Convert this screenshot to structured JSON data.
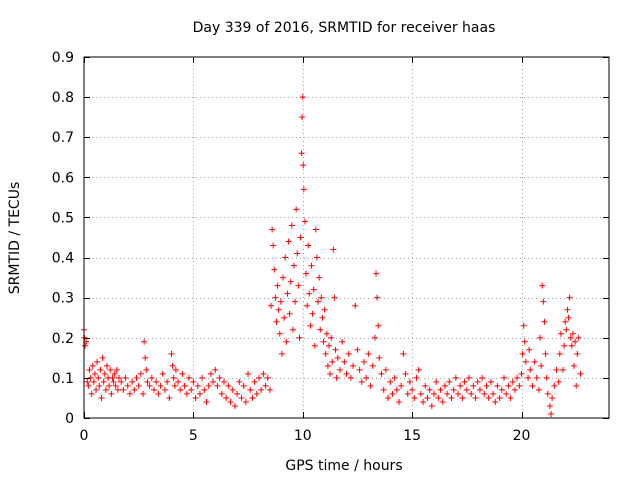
{
  "chart_data": {
    "type": "scatter",
    "title": "Day 339 of 2016, SRMTID for receiver haas",
    "xlabel": "GPS time / hours",
    "ylabel": "SRMTID / TECUs",
    "xlim": [
      0,
      24
    ],
    "ylim": [
      0,
      0.9
    ],
    "xticks": [
      0,
      5,
      10,
      15,
      20
    ],
    "xtick_labels": [
      "0",
      "5",
      "10",
      "15",
      "20"
    ],
    "yticks": [
      0,
      0.1,
      0.2,
      0.3,
      0.4,
      0.5,
      0.6,
      0.7,
      0.8,
      0.9
    ],
    "ytick_labels": [
      "0",
      "0.1",
      "0.2",
      "0.3",
      "0.4",
      "0.5",
      "0.6",
      "0.7",
      "0.8",
      "0.9"
    ],
    "grid": true,
    "marker": "+",
    "marker_color": "#ff0000",
    "series": [
      {
        "name": "SRMTID",
        "points": [
          [
            0.0,
            0.22
          ],
          [
            0.02,
            0.2
          ],
          [
            0.05,
            0.18
          ],
          [
            0.1,
            0.19
          ],
          [
            0.15,
            0.09
          ],
          [
            0.2,
            0.08
          ],
          [
            0.25,
            0.12
          ],
          [
            0.3,
            0.1
          ],
          [
            0.35,
            0.06
          ],
          [
            0.4,
            0.13
          ],
          [
            0.45,
            0.09
          ],
          [
            0.5,
            0.11
          ],
          [
            0.55,
            0.07
          ],
          [
            0.6,
            0.14
          ],
          [
            0.65,
            0.1
          ],
          [
            0.7,
            0.08
          ],
          [
            0.75,
            0.12
          ],
          [
            0.8,
            0.05
          ],
          [
            0.85,
            0.15
          ],
          [
            0.9,
            0.09
          ],
          [
            0.95,
            0.11
          ],
          [
            1.0,
            0.07
          ],
          [
            1.05,
            0.13
          ],
          [
            1.1,
            0.1
          ],
          [
            1.15,
            0.08
          ],
          [
            1.2,
            0.12
          ],
          [
            1.25,
            0.06
          ],
          [
            1.3,
            0.1
          ],
          [
            1.35,
            0.09
          ],
          [
            1.4,
            0.11
          ],
          [
            1.45,
            0.08
          ],
          [
            1.5,
            0.12
          ],
          [
            1.55,
            0.07
          ],
          [
            1.6,
            0.1
          ],
          [
            1.7,
            0.09
          ],
          [
            1.8,
            0.07
          ],
          [
            1.9,
            0.1
          ],
          [
            2.0,
            0.08
          ],
          [
            2.1,
            0.06
          ],
          [
            2.2,
            0.09
          ],
          [
            2.3,
            0.07
          ],
          [
            2.4,
            0.1
          ],
          [
            2.5,
            0.08
          ],
          [
            2.6,
            0.11
          ],
          [
            2.7,
            0.06
          ],
          [
            2.75,
            0.19
          ],
          [
            2.8,
            0.15
          ],
          [
            2.85,
            0.12
          ],
          [
            2.9,
            0.09
          ],
          [
            3.0,
            0.08
          ],
          [
            3.1,
            0.1
          ],
          [
            3.2,
            0.07
          ],
          [
            3.3,
            0.09
          ],
          [
            3.4,
            0.06
          ],
          [
            3.5,
            0.08
          ],
          [
            3.6,
            0.11
          ],
          [
            3.7,
            0.07
          ],
          [
            3.8,
            0.09
          ],
          [
            3.9,
            0.05
          ],
          [
            4.0,
            0.16
          ],
          [
            4.05,
            0.13
          ],
          [
            4.1,
            0.1
          ],
          [
            4.15,
            0.08
          ],
          [
            4.2,
            0.12
          ],
          [
            4.3,
            0.09
          ],
          [
            4.4,
            0.07
          ],
          [
            4.5,
            0.11
          ],
          [
            4.6,
            0.08
          ],
          [
            4.7,
            0.06
          ],
          [
            4.8,
            0.1
          ],
          [
            4.9,
            0.07
          ],
          [
            5.0,
            0.09
          ],
          [
            5.1,
            0.05
          ],
          [
            5.2,
            0.08
          ],
          [
            5.3,
            0.06
          ],
          [
            5.4,
            0.1
          ],
          [
            5.5,
            0.07
          ],
          [
            5.6,
            0.04
          ],
          [
            5.7,
            0.08
          ],
          [
            5.8,
            0.11
          ],
          [
            5.9,
            0.09
          ],
          [
            6.0,
            0.12
          ],
          [
            6.1,
            0.08
          ],
          [
            6.2,
            0.1
          ],
          [
            6.3,
            0.06
          ],
          [
            6.4,
            0.09
          ],
          [
            6.5,
            0.05
          ],
          [
            6.6,
            0.08
          ],
          [
            6.7,
            0.04
          ],
          [
            6.8,
            0.07
          ],
          [
            6.9,
            0.03
          ],
          [
            7.0,
            0.06
          ],
          [
            7.1,
            0.09
          ],
          [
            7.2,
            0.05
          ],
          [
            7.3,
            0.08
          ],
          [
            7.4,
            0.04
          ],
          [
            7.5,
            0.11
          ],
          [
            7.6,
            0.07
          ],
          [
            7.7,
            0.05
          ],
          [
            7.8,
            0.09
          ],
          [
            7.9,
            0.06
          ],
          [
            8.0,
            0.1
          ],
          [
            8.1,
            0.07
          ],
          [
            8.2,
            0.11
          ],
          [
            8.3,
            0.08
          ],
          [
            8.4,
            0.1
          ],
          [
            8.5,
            0.07
          ],
          [
            8.55,
            0.28
          ],
          [
            8.6,
            0.47
          ],
          [
            8.65,
            0.43
          ],
          [
            8.7,
            0.37
          ],
          [
            8.75,
            0.3
          ],
          [
            8.8,
            0.24
          ],
          [
            8.85,
            0.33
          ],
          [
            8.9,
            0.27
          ],
          [
            8.95,
            0.21
          ],
          [
            9.0,
            0.29
          ],
          [
            9.05,
            0.16
          ],
          [
            9.1,
            0.35
          ],
          [
            9.15,
            0.25
          ],
          [
            9.2,
            0.4
          ],
          [
            9.25,
            0.19
          ],
          [
            9.3,
            0.31
          ],
          [
            9.35,
            0.44
          ],
          [
            9.4,
            0.26
          ],
          [
            9.45,
            0.34
          ],
          [
            9.5,
            0.48
          ],
          [
            9.55,
            0.22
          ],
          [
            9.6,
            0.38
          ],
          [
            9.65,
            0.29
          ],
          [
            9.7,
            0.52
          ],
          [
            9.75,
            0.41
          ],
          [
            9.8,
            0.33
          ],
          [
            9.85,
            0.2
          ],
          [
            9.9,
            0.45
          ],
          [
            9.95,
            0.66
          ],
          [
            9.97,
            0.75
          ],
          [
            10.0,
            0.8
          ],
          [
            10.02,
            0.63
          ],
          [
            10.05,
            0.57
          ],
          [
            10.1,
            0.49
          ],
          [
            10.15,
            0.36
          ],
          [
            10.2,
            0.28
          ],
          [
            10.25,
            0.43
          ],
          [
            10.3,
            0.31
          ],
          [
            10.35,
            0.23
          ],
          [
            10.4,
            0.38
          ],
          [
            10.45,
            0.26
          ],
          [
            10.5,
            0.32
          ],
          [
            10.55,
            0.18
          ],
          [
            10.6,
            0.47
          ],
          [
            10.65,
            0.4
          ],
          [
            10.7,
            0.29
          ],
          [
            10.75,
            0.35
          ],
          [
            10.8,
            0.22
          ],
          [
            10.85,
            0.3
          ],
          [
            10.9,
            0.25
          ],
          [
            10.95,
            0.19
          ],
          [
            11.0,
            0.27
          ],
          [
            11.05,
            0.16
          ],
          [
            11.1,
            0.21
          ],
          [
            11.15,
            0.13
          ],
          [
            11.2,
            0.18
          ],
          [
            11.25,
            0.11
          ],
          [
            11.3,
            0.2
          ],
          [
            11.35,
            0.14
          ],
          [
            11.4,
            0.42
          ],
          [
            11.45,
            0.3
          ],
          [
            11.5,
            0.17
          ],
          [
            11.55,
            0.1
          ],
          [
            11.6,
            0.15
          ],
          [
            11.7,
            0.12
          ],
          [
            11.8,
            0.19
          ],
          [
            11.9,
            0.14
          ],
          [
            12.0,
            0.11
          ],
          [
            12.1,
            0.16
          ],
          [
            12.2,
            0.1
          ],
          [
            12.3,
            0.13
          ],
          [
            12.4,
            0.28
          ],
          [
            12.5,
            0.17
          ],
          [
            12.6,
            0.12
          ],
          [
            12.7,
            0.09
          ],
          [
            12.8,
            0.14
          ],
          [
            12.9,
            0.1
          ],
          [
            13.0,
            0.16
          ],
          [
            13.1,
            0.08
          ],
          [
            13.2,
            0.13
          ],
          [
            13.3,
            0.2
          ],
          [
            13.35,
            0.36
          ],
          [
            13.4,
            0.3
          ],
          [
            13.45,
            0.23
          ],
          [
            13.5,
            0.15
          ],
          [
            13.6,
            0.11
          ],
          [
            13.7,
            0.07
          ],
          [
            13.8,
            0.12
          ],
          [
            13.9,
            0.05
          ],
          [
            14.0,
            0.09
          ],
          [
            14.1,
            0.06
          ],
          [
            14.2,
            0.1
          ],
          [
            14.3,
            0.07
          ],
          [
            14.4,
            0.04
          ],
          [
            14.5,
            0.08
          ],
          [
            14.6,
            0.16
          ],
          [
            14.7,
            0.11
          ],
          [
            14.8,
            0.06
          ],
          [
            14.9,
            0.09
          ],
          [
            15.0,
            0.07
          ],
          [
            15.1,
            0.05
          ],
          [
            15.2,
            0.1
          ],
          [
            15.3,
            0.12
          ],
          [
            15.4,
            0.06
          ],
          [
            15.5,
            0.04
          ],
          [
            15.6,
            0.08
          ],
          [
            15.7,
            0.05
          ],
          [
            15.8,
            0.07
          ],
          [
            15.9,
            0.03
          ],
          [
            16.0,
            0.06
          ],
          [
            16.1,
            0.09
          ],
          [
            16.2,
            0.05
          ],
          [
            16.3,
            0.07
          ],
          [
            16.4,
            0.04
          ],
          [
            16.5,
            0.08
          ],
          [
            16.6,
            0.06
          ],
          [
            16.7,
            0.09
          ],
          [
            16.8,
            0.05
          ],
          [
            16.9,
            0.07
          ],
          [
            17.0,
            0.1
          ],
          [
            17.1,
            0.06
          ],
          [
            17.2,
            0.08
          ],
          [
            17.3,
            0.05
          ],
          [
            17.4,
            0.09
          ],
          [
            17.5,
            0.07
          ],
          [
            17.6,
            0.1
          ],
          [
            17.7,
            0.06
          ],
          [
            17.8,
            0.08
          ],
          [
            17.9,
            0.05
          ],
          [
            18.0,
            0.09
          ],
          [
            18.1,
            0.07
          ],
          [
            18.2,
            0.1
          ],
          [
            18.3,
            0.06
          ],
          [
            18.4,
            0.08
          ],
          [
            18.5,
            0.05
          ],
          [
            18.6,
            0.09
          ],
          [
            18.7,
            0.06
          ],
          [
            18.8,
            0.04
          ],
          [
            18.9,
            0.08
          ],
          [
            19.0,
            0.05
          ],
          [
            19.1,
            0.07
          ],
          [
            19.2,
            0.1
          ],
          [
            19.3,
            0.06
          ],
          [
            19.4,
            0.08
          ],
          [
            19.5,
            0.05
          ],
          [
            19.6,
            0.09
          ],
          [
            19.7,
            0.07
          ],
          [
            19.8,
            0.1
          ],
          [
            19.9,
            0.08
          ],
          [
            20.0,
            0.11
          ],
          [
            20.05,
            0.16
          ],
          [
            20.1,
            0.23
          ],
          [
            20.15,
            0.19
          ],
          [
            20.2,
            0.14
          ],
          [
            20.3,
            0.1
          ],
          [
            20.35,
            0.17
          ],
          [
            20.4,
            0.12
          ],
          [
            20.5,
            0.08
          ],
          [
            20.6,
            0.14
          ],
          [
            20.7,
            0.1
          ],
          [
            20.8,
            0.07
          ],
          [
            20.85,
            0.2
          ],
          [
            20.9,
            0.13
          ],
          [
            20.95,
            0.33
          ],
          [
            21.0,
            0.29
          ],
          [
            21.05,
            0.24
          ],
          [
            21.1,
            0.16
          ],
          [
            21.15,
            0.1
          ],
          [
            21.2,
            0.06
          ],
          [
            21.3,
            0.03
          ],
          [
            21.35,
            0.01
          ],
          [
            21.4,
            0.05
          ],
          [
            21.5,
            0.08
          ],
          [
            21.6,
            0.12
          ],
          [
            21.7,
            0.09
          ],
          [
            21.75,
            0.16
          ],
          [
            21.8,
            0.21
          ],
          [
            21.9,
            0.12
          ],
          [
            21.95,
            0.18
          ],
          [
            22.0,
            0.24
          ],
          [
            22.05,
            0.22
          ],
          [
            22.1,
            0.27
          ],
          [
            22.15,
            0.25
          ],
          [
            22.2,
            0.3
          ],
          [
            22.25,
            0.2
          ],
          [
            22.3,
            0.18
          ],
          [
            22.35,
            0.21
          ],
          [
            22.4,
            0.13
          ],
          [
            22.45,
            0.19
          ],
          [
            22.5,
            0.08
          ],
          [
            22.55,
            0.16
          ],
          [
            22.6,
            0.2
          ],
          [
            22.7,
            0.11
          ]
        ]
      }
    ]
  }
}
